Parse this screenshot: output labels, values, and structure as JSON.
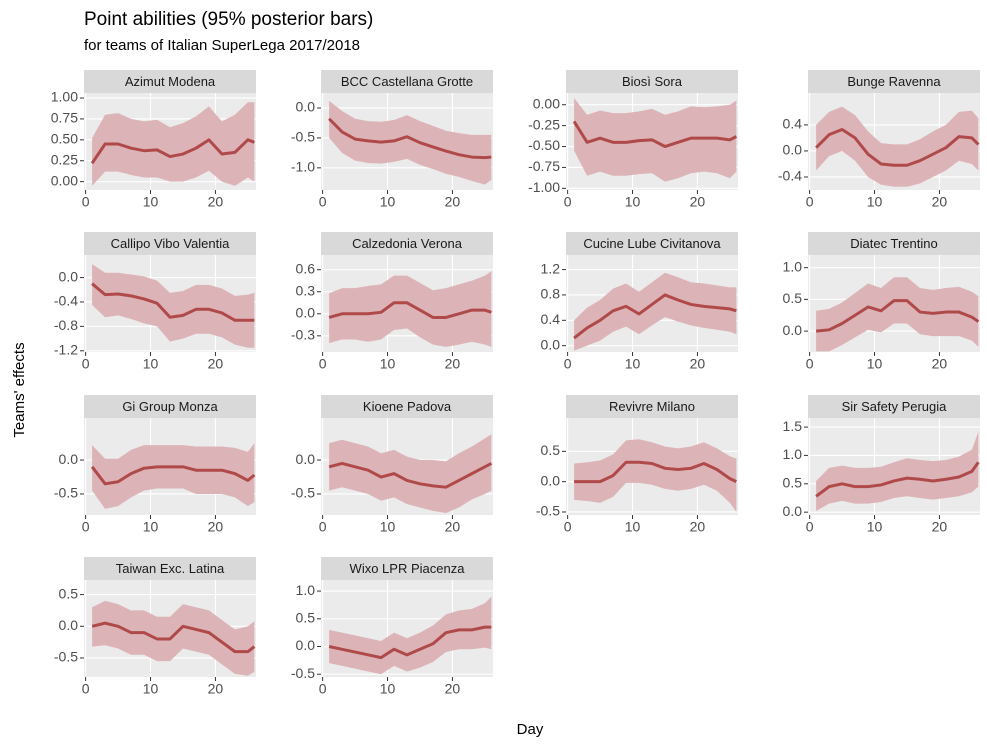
{
  "title": "Point abilities (95% posterior bars)",
  "subtitle": "for teams of Italian SuperLega 2017/2018",
  "x_label": "Day",
  "y_label": "Teams' effects",
  "chart_data": [
    {
      "type": "line",
      "title": "Azimut Modena",
      "color": "#b04a4a",
      "band_color": "#dcb4b7",
      "x": [
        1,
        3,
        5,
        7,
        9,
        11,
        13,
        15,
        17,
        19,
        21,
        23,
        25,
        26
      ],
      "values": [
        0.22,
        0.45,
        0.45,
        0.4,
        0.37,
        0.38,
        0.3,
        0.33,
        0.4,
        0.5,
        0.33,
        0.35,
        0.5,
        0.47
      ],
      "lower": [
        -0.05,
        0.12,
        0.12,
        0.08,
        0.05,
        0.05,
        0.0,
        0.0,
        0.05,
        0.13,
        0.0,
        -0.05,
        0.05,
        0.0
      ],
      "upper": [
        0.52,
        0.8,
        0.82,
        0.75,
        0.72,
        0.74,
        0.65,
        0.7,
        0.78,
        0.9,
        0.72,
        0.8,
        0.95,
        0.95
      ],
      "xlim": [
        -0.25,
        26.25
      ],
      "xticks": [
        0,
        10,
        20
      ],
      "ylim": [
        -0.1,
        1.06
      ],
      "yticks": [
        {
          "value": 0,
          "label": "0.00"
        },
        0.25,
        {
          "value": 0.5,
          "label": "0.50"
        },
        0.75,
        {
          "value": 1,
          "label": "1.00"
        }
      ]
    },
    {
      "type": "line",
      "title": "BCC Castellana Grotte",
      "color": "#b04a4a",
      "band_color": "#dcb4b7",
      "x": [
        1,
        3,
        5,
        7,
        9,
        11,
        13,
        15,
        17,
        19,
        21,
        23,
        25,
        26
      ],
      "values": [
        -0.18,
        -0.4,
        -0.52,
        -0.55,
        -0.57,
        -0.55,
        -0.48,
        -0.58,
        -0.65,
        -0.72,
        -0.78,
        -0.82,
        -0.83,
        -0.82
      ],
      "lower": [
        -0.5,
        -0.75,
        -0.88,
        -0.92,
        -0.93,
        -0.9,
        -0.85,
        -0.95,
        -1.02,
        -1.1,
        -1.15,
        -1.22,
        -1.28,
        -1.2
      ],
      "upper": [
        0.12,
        -0.05,
        -0.18,
        -0.22,
        -0.23,
        -0.2,
        -0.12,
        -0.22,
        -0.3,
        -0.38,
        -0.42,
        -0.45,
        -0.45,
        -0.45
      ],
      "xlim": [
        -0.25,
        26.25
      ],
      "xticks": [
        0,
        10,
        20
      ],
      "ylim": [
        -1.37,
        0.25
      ],
      "yticks": [
        {
          "value": 0,
          "label": "0.0"
        },
        -0.5,
        {
          "value": -1,
          "label": "-1.0"
        }
      ]
    },
    {
      "type": "line",
      "title": "Biosì Sora",
      "color": "#b04a4a",
      "band_color": "#dcb4b7",
      "x": [
        1,
        3,
        5,
        7,
        9,
        11,
        13,
        15,
        17,
        19,
        21,
        23,
        25,
        26
      ],
      "values": [
        -0.2,
        -0.45,
        -0.4,
        -0.45,
        -0.45,
        -0.43,
        -0.42,
        -0.5,
        -0.45,
        -0.4,
        -0.4,
        -0.4,
        -0.42,
        -0.38
      ],
      "lower": [
        -0.55,
        -0.85,
        -0.8,
        -0.85,
        -0.85,
        -0.83,
        -0.82,
        -0.92,
        -0.88,
        -0.82,
        -0.8,
        -0.82,
        -0.88,
        -0.8
      ],
      "upper": [
        0.08,
        -0.12,
        -0.07,
        -0.1,
        -0.1,
        -0.08,
        -0.05,
        -0.12,
        -0.08,
        -0.02,
        -0.03,
        -0.02,
        0.0,
        0.05
      ],
      "xlim": [
        -0.25,
        26.25
      ],
      "xticks": [
        0,
        10,
        20
      ],
      "ylim": [
        -1.02,
        0.14
      ],
      "yticks": [
        {
          "value": 0,
          "label": "0.00"
        },
        -0.25,
        {
          "value": -0.5,
          "label": "-0.50"
        },
        -0.75,
        {
          "value": -1,
          "label": "-1.00"
        }
      ]
    },
    {
      "type": "line",
      "title": "Bunge Ravenna",
      "color": "#b04a4a",
      "band_color": "#dcb4b7",
      "x": [
        1,
        3,
        5,
        7,
        9,
        11,
        13,
        15,
        17,
        19,
        21,
        23,
        25,
        26
      ],
      "values": [
        0.05,
        0.25,
        0.33,
        0.2,
        -0.05,
        -0.2,
        -0.22,
        -0.22,
        -0.15,
        -0.05,
        0.05,
        0.22,
        0.2,
        0.1
      ],
      "lower": [
        -0.3,
        -0.08,
        0.0,
        -0.15,
        -0.4,
        -0.52,
        -0.55,
        -0.55,
        -0.5,
        -0.4,
        -0.3,
        -0.15,
        -0.2,
        -0.3
      ],
      "upper": [
        0.4,
        0.6,
        0.68,
        0.55,
        0.3,
        0.12,
        0.1,
        0.1,
        0.18,
        0.3,
        0.4,
        0.6,
        0.62,
        0.5
      ],
      "xlim": [
        -0.25,
        26.25
      ],
      "xticks": [
        0,
        10,
        20
      ],
      "ylim": [
        -0.6,
        0.89
      ],
      "yticks": [
        0.4,
        {
          "value": 0,
          "label": "0.0"
        },
        -0.4
      ]
    },
    {
      "type": "line",
      "title": "Callipo Vibo Valentia",
      "color": "#b04a4a",
      "band_color": "#dcb4b7",
      "x": [
        1,
        3,
        5,
        7,
        9,
        11,
        13,
        15,
        17,
        19,
        21,
        23,
        25,
        26
      ],
      "values": [
        -0.1,
        -0.28,
        -0.27,
        -0.3,
        -0.35,
        -0.42,
        -0.65,
        -0.62,
        -0.52,
        -0.52,
        -0.58,
        -0.7,
        -0.7,
        -0.7
      ],
      "lower": [
        -0.45,
        -0.65,
        -0.62,
        -0.68,
        -0.75,
        -0.8,
        -1.05,
        -1.0,
        -0.92,
        -0.92,
        -0.98,
        -1.1,
        -1.15,
        -1.15
      ],
      "upper": [
        0.22,
        0.08,
        0.08,
        0.05,
        0.02,
        -0.05,
        -0.25,
        -0.22,
        -0.12,
        -0.12,
        -0.18,
        -0.3,
        -0.28,
        -0.25
      ],
      "xlim": [
        -0.25,
        26.25
      ],
      "xticks": [
        0,
        10,
        20
      ],
      "ylim": [
        -1.22,
        0.37
      ],
      "yticks": [
        {
          "value": 0,
          "label": "0.0"
        },
        -0.4,
        -0.8,
        -1.2
      ]
    },
    {
      "type": "line",
      "title": "Calzedonia Verona",
      "color": "#b04a4a",
      "band_color": "#dcb4b7",
      "x": [
        1,
        3,
        5,
        7,
        9,
        11,
        13,
        15,
        17,
        19,
        21,
        23,
        25,
        26
      ],
      "values": [
        -0.05,
        0.0,
        0.0,
        0.0,
        0.02,
        0.15,
        0.15,
        0.05,
        -0.05,
        -0.05,
        0.0,
        0.05,
        0.05,
        0.02
      ],
      "lower": [
        -0.4,
        -0.35,
        -0.35,
        -0.38,
        -0.35,
        -0.22,
        -0.2,
        -0.32,
        -0.42,
        -0.45,
        -0.42,
        -0.38,
        -0.42,
        -0.45
      ],
      "upper": [
        0.28,
        0.35,
        0.35,
        0.38,
        0.4,
        0.52,
        0.52,
        0.42,
        0.32,
        0.35,
        0.4,
        0.45,
        0.52,
        0.58
      ],
      "xlim": [
        -0.25,
        26.25
      ],
      "xticks": [
        0,
        10,
        20
      ],
      "ylim": [
        -0.52,
        0.8
      ],
      "yticks": [
        0.6,
        0.3,
        {
          "value": 0,
          "label": "0.0"
        },
        -0.3
      ]
    },
    {
      "type": "line",
      "title": "Cucine Lube Civitanova",
      "color": "#b04a4a",
      "band_color": "#dcb4b7",
      "x": [
        1,
        3,
        5,
        7,
        9,
        11,
        13,
        15,
        17,
        19,
        21,
        23,
        25,
        26
      ],
      "values": [
        0.12,
        0.28,
        0.4,
        0.55,
        0.62,
        0.5,
        0.65,
        0.8,
        0.72,
        0.65,
        0.62,
        0.6,
        0.58,
        0.55
      ],
      "lower": [
        -0.08,
        0.0,
        0.08,
        0.22,
        0.3,
        0.18,
        0.32,
        0.45,
        0.38,
        0.32,
        0.28,
        0.25,
        0.22,
        0.18
      ],
      "upper": [
        0.4,
        0.6,
        0.72,
        0.9,
        0.98,
        0.85,
        1.0,
        1.15,
        1.08,
        1.0,
        0.98,
        0.95,
        0.92,
        0.92
      ],
      "xlim": [
        -0.25,
        26.25
      ],
      "xticks": [
        0,
        10,
        20
      ],
      "ylim": [
        -0.1,
        1.43
      ],
      "yticks": [
        1.2,
        0.8,
        0.4,
        {
          "value": 0,
          "label": "0.0"
        }
      ]
    },
    {
      "type": "line",
      "title": "Diatec Trentino",
      "color": "#b04a4a",
      "band_color": "#dcb4b7",
      "x": [
        1,
        3,
        5,
        7,
        9,
        11,
        13,
        15,
        17,
        19,
        21,
        23,
        25,
        26
      ],
      "values": [
        0.0,
        0.02,
        0.12,
        0.25,
        0.38,
        0.32,
        0.48,
        0.48,
        0.3,
        0.28,
        0.3,
        0.3,
        0.22,
        0.15
      ],
      "lower": [
        -0.32,
        -0.32,
        -0.22,
        -0.1,
        0.02,
        -0.02,
        0.12,
        0.12,
        -0.05,
        -0.08,
        -0.08,
        -0.08,
        -0.15,
        -0.25
      ],
      "upper": [
        0.32,
        0.35,
        0.45,
        0.6,
        0.75,
        0.68,
        0.85,
        0.85,
        0.68,
        0.65,
        0.68,
        0.7,
        0.62,
        0.55
      ],
      "xlim": [
        -0.25,
        26.25
      ],
      "xticks": [
        0,
        10,
        20
      ],
      "ylim": [
        -0.33,
        1.2
      ],
      "yticks": [
        {
          "value": 1,
          "label": "1.0"
        },
        0.5,
        {
          "value": 0,
          "label": "0.0"
        }
      ]
    },
    {
      "type": "line",
      "title": "Gi Group Monza",
      "color": "#b04a4a",
      "band_color": "#dcb4b7",
      "x": [
        1,
        3,
        5,
        7,
        9,
        11,
        13,
        15,
        17,
        19,
        21,
        23,
        25,
        26
      ],
      "values": [
        -0.1,
        -0.35,
        -0.32,
        -0.2,
        -0.12,
        -0.1,
        -0.1,
        -0.1,
        -0.15,
        -0.15,
        -0.15,
        -0.2,
        -0.3,
        -0.22
      ],
      "lower": [
        -0.45,
        -0.72,
        -0.68,
        -0.55,
        -0.45,
        -0.42,
        -0.42,
        -0.42,
        -0.5,
        -0.5,
        -0.5,
        -0.55,
        -0.68,
        -0.62
      ],
      "upper": [
        0.22,
        0.02,
        0.02,
        0.15,
        0.22,
        0.22,
        0.22,
        0.22,
        0.2,
        0.2,
        0.2,
        0.18,
        0.12,
        0.25
      ],
      "xlim": [
        -0.25,
        26.25
      ],
      "xticks": [
        0,
        10,
        20
      ],
      "ylim": [
        -0.81,
        0.62
      ],
      "yticks": [
        {
          "value": 0,
          "label": "0.0"
        },
        -0.5
      ]
    },
    {
      "type": "line",
      "title": "Kioene Padova",
      "color": "#b04a4a",
      "band_color": "#dcb4b7",
      "x": [
        1,
        3,
        5,
        7,
        9,
        11,
        13,
        15,
        17,
        19,
        21,
        23,
        25,
        26
      ],
      "values": [
        -0.1,
        -0.05,
        -0.1,
        -0.15,
        -0.25,
        -0.2,
        -0.3,
        -0.35,
        -0.38,
        -0.4,
        -0.3,
        -0.2,
        -0.1,
        -0.05
      ],
      "lower": [
        -0.45,
        -0.4,
        -0.45,
        -0.5,
        -0.6,
        -0.55,
        -0.65,
        -0.7,
        -0.75,
        -0.78,
        -0.7,
        -0.58,
        -0.5,
        -0.45
      ],
      "upper": [
        0.25,
        0.3,
        0.25,
        0.2,
        0.1,
        0.15,
        0.05,
        0.0,
        0.0,
        -0.02,
        0.1,
        0.2,
        0.32,
        0.38
      ],
      "xlim": [
        -0.25,
        26.25
      ],
      "xticks": [
        0,
        10,
        20
      ],
      "ylim": [
        -0.81,
        0.62
      ],
      "yticks": [
        {
          "value": 0,
          "label": "0.0"
        },
        -0.5
      ]
    },
    {
      "type": "line",
      "title": "Revivre Milano",
      "color": "#b04a4a",
      "band_color": "#dcb4b7",
      "x": [
        1,
        3,
        5,
        7,
        9,
        11,
        13,
        15,
        17,
        19,
        21,
        23,
        25,
        26
      ],
      "values": [
        0.0,
        0.0,
        0.0,
        0.1,
        0.32,
        0.32,
        0.3,
        0.22,
        0.2,
        0.22,
        0.3,
        0.2,
        0.05,
        0.0
      ],
      "lower": [
        -0.3,
        -0.32,
        -0.35,
        -0.25,
        -0.02,
        -0.02,
        -0.05,
        -0.12,
        -0.15,
        -0.12,
        -0.05,
        -0.15,
        -0.35,
        -0.5
      ],
      "upper": [
        0.3,
        0.32,
        0.35,
        0.45,
        0.68,
        0.7,
        0.65,
        0.58,
        0.55,
        0.58,
        0.65,
        0.55,
        0.42,
        0.38
      ],
      "xlim": [
        -0.25,
        26.25
      ],
      "xticks": [
        0,
        10,
        20
      ],
      "ylim": [
        -0.55,
        1.05
      ],
      "yticks": [
        0.5,
        {
          "value": 0,
          "label": "0.0"
        },
        -0.5
      ]
    },
    {
      "type": "line",
      "title": "Sir Safety Perugia",
      "color": "#b04a4a",
      "band_color": "#dcb4b7",
      "x": [
        1,
        3,
        5,
        7,
        9,
        11,
        13,
        15,
        17,
        19,
        21,
        23,
        25,
        26
      ],
      "values": [
        0.28,
        0.45,
        0.5,
        0.45,
        0.45,
        0.48,
        0.55,
        0.6,
        0.58,
        0.55,
        0.58,
        0.62,
        0.72,
        0.88
      ],
      "lower": [
        0.02,
        0.15,
        0.2,
        0.15,
        0.15,
        0.18,
        0.25,
        0.28,
        0.25,
        0.22,
        0.25,
        0.28,
        0.35,
        0.45
      ],
      "upper": [
        0.55,
        0.78,
        0.82,
        0.78,
        0.78,
        0.8,
        0.88,
        0.95,
        0.92,
        0.9,
        0.92,
        0.98,
        1.1,
        1.42
      ],
      "xlim": [
        -0.25,
        26.25
      ],
      "xticks": [
        0,
        10,
        20
      ],
      "ylim": [
        -0.05,
        1.66
      ],
      "yticks": [
        1.5,
        {
          "value": 1,
          "label": "1.0"
        },
        0.5,
        {
          "value": 0,
          "label": "0.0"
        }
      ]
    },
    {
      "type": "line",
      "title": "Taiwan Exc. Latina",
      "color": "#b04a4a",
      "band_color": "#dcb4b7",
      "x": [
        1,
        3,
        5,
        7,
        9,
        11,
        13,
        15,
        17,
        19,
        21,
        23,
        25,
        26
      ],
      "values": [
        0.0,
        0.05,
        0.0,
        -0.1,
        -0.1,
        -0.2,
        -0.2,
        0.0,
        -0.05,
        -0.1,
        -0.25,
        -0.4,
        -0.4,
        -0.32
      ],
      "lower": [
        -0.32,
        -0.3,
        -0.35,
        -0.45,
        -0.45,
        -0.55,
        -0.55,
        -0.35,
        -0.4,
        -0.45,
        -0.6,
        -0.75,
        -0.78,
        -0.72
      ],
      "upper": [
        0.3,
        0.4,
        0.35,
        0.25,
        0.25,
        0.15,
        0.15,
        0.35,
        0.3,
        0.25,
        0.1,
        -0.05,
        0.0,
        0.08
      ],
      "xlim": [
        -0.25,
        26.25
      ],
      "xticks": [
        0,
        10,
        20
      ],
      "ylim": [
        -0.8,
        0.73
      ],
      "yticks": [
        0.5,
        {
          "value": 0,
          "label": "0.0"
        },
        -0.5
      ]
    },
    {
      "type": "line",
      "title": "Wixo LPR Piacenza",
      "color": "#b04a4a",
      "band_color": "#dcb4b7",
      "x": [
        1,
        3,
        5,
        7,
        9,
        11,
        13,
        15,
        17,
        19,
        21,
        23,
        25,
        26
      ],
      "values": [
        0.0,
        -0.05,
        -0.1,
        -0.15,
        -0.2,
        -0.05,
        -0.15,
        -0.05,
        0.05,
        0.25,
        0.3,
        0.3,
        0.35,
        0.35
      ],
      "lower": [
        -0.3,
        -0.35,
        -0.4,
        -0.45,
        -0.5,
        -0.35,
        -0.45,
        -0.38,
        -0.28,
        -0.1,
        -0.05,
        -0.05,
        -0.02,
        -0.05
      ],
      "upper": [
        0.3,
        0.25,
        0.2,
        0.15,
        0.1,
        0.25,
        0.15,
        0.25,
        0.38,
        0.58,
        0.65,
        0.68,
        0.78,
        0.9
      ],
      "xlim": [
        -0.25,
        26.25
      ],
      "xticks": [
        0,
        10,
        20
      ],
      "ylim": [
        -0.55,
        1.2
      ],
      "yticks": [
        {
          "value": 1,
          "label": "1.0"
        },
        0.5,
        {
          "value": 0,
          "label": "0.0"
        },
        -0.5
      ]
    }
  ]
}
